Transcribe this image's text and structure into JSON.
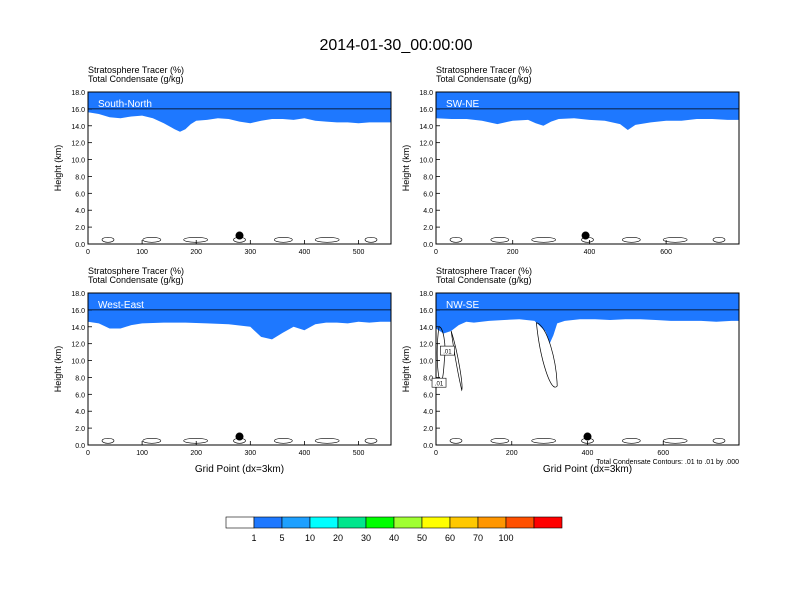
{
  "title": "2014-01-30_00:00:00",
  "colors": {
    "levels": [
      "#ffffff",
      "#1e78ff",
      "#1ea0ff",
      "#00ffff",
      "#00e68c",
      "#00ff00",
      "#a0ff32",
      "#ffff00",
      "#ffc800",
      "#ff9600",
      "#ff5000",
      "#ff0000"
    ]
  },
  "colorbar": {
    "tick_labels": [
      "1",
      "5",
      "10",
      "20",
      "30",
      "40",
      "50",
      "60",
      "70",
      "100"
    ]
  },
  "chart_data": [
    {
      "type": "heatmap",
      "panel_label": "South-North",
      "subtitle_line1": "Stratosphere Tracer   (%)",
      "subtitle_line2": "Total Condensate   (g/kg)",
      "ylabel": "Height (km)",
      "xlabel": "",
      "xlim": [
        0,
        560
      ],
      "ylim": [
        0,
        18
      ],
      "x_ticks": [
        "0",
        "100",
        "200",
        "300",
        "400",
        "500"
      ],
      "y_ticks": [
        "0.0",
        "2.0",
        "4.0",
        "6.0",
        "8.0",
        "10.0",
        "12.0",
        "14.0",
        "16.0",
        "18.0"
      ],
      "tracer_boundary_km": {
        "x": [
          0,
          20,
          40,
          60,
          80,
          100,
          120,
          140,
          160,
          170,
          180,
          190,
          200,
          220,
          240,
          260,
          280,
          300,
          320,
          340,
          360,
          380,
          400,
          420,
          440,
          460,
          480,
          500,
          520,
          540,
          560
        ],
        "y": [
          15.6,
          15.4,
          15.0,
          14.9,
          15.1,
          15.2,
          14.9,
          14.3,
          13.6,
          13.3,
          13.6,
          14.2,
          14.6,
          14.7,
          14.9,
          14.8,
          14.5,
          14.3,
          14.6,
          14.8,
          14.8,
          14.7,
          14.9,
          14.6,
          14.5,
          14.4,
          14.4,
          14.3,
          14.4,
          14.4,
          14.4
        ]
      },
      "marker_point": {
        "x": 280,
        "y": 1.0
      },
      "contour_label": "",
      "contour_note": ""
    },
    {
      "type": "heatmap",
      "panel_label": "SW-NE",
      "subtitle_line1": "Stratosphere Tracer   (%)",
      "subtitle_line2": "Total Condensate   (g/kg)",
      "ylabel": "Height (km)",
      "xlabel": "",
      "xlim": [
        0,
        790
      ],
      "ylim": [
        0,
        18
      ],
      "x_ticks": [
        "0",
        "200",
        "400",
        "600"
      ],
      "y_ticks": [
        "0.0",
        "2.0",
        "4.0",
        "6.0",
        "8.0",
        "10.0",
        "12.0",
        "14.0",
        "16.0",
        "18.0"
      ],
      "tracer_boundary_km": {
        "x": [
          0,
          40,
          80,
          120,
          160,
          200,
          240,
          260,
          280,
          300,
          320,
          360,
          400,
          440,
          480,
          500,
          520,
          560,
          600,
          640,
          680,
          720,
          760,
          790
        ],
        "y": [
          14.9,
          14.8,
          14.8,
          14.6,
          14.2,
          14.6,
          14.7,
          14.3,
          14.0,
          14.5,
          14.8,
          14.9,
          14.7,
          14.6,
          14.2,
          13.5,
          14.1,
          14.4,
          14.6,
          14.6,
          14.8,
          14.8,
          14.7,
          14.7
        ]
      },
      "marker_point": {
        "x": 390,
        "y": 1.0
      },
      "contour_label": "",
      "contour_note": ""
    },
    {
      "type": "heatmap",
      "panel_label": "West-East",
      "subtitle_line1": "Stratosphere Tracer   (%)",
      "subtitle_line2": "Total Condensate   (g/kg)",
      "ylabel": "Height (km)",
      "xlabel": "Grid Point (dx=3km)",
      "xlim": [
        0,
        560
      ],
      "ylim": [
        0,
        18
      ],
      "x_ticks": [
        "0",
        "100",
        "200",
        "300",
        "400",
        "500"
      ],
      "y_ticks": [
        "0.0",
        "2.0",
        "4.0",
        "6.0",
        "8.0",
        "10.0",
        "12.0",
        "14.0",
        "16.0",
        "18.0"
      ],
      "tracer_boundary_km": {
        "x": [
          0,
          20,
          40,
          60,
          80,
          100,
          140,
          180,
          220,
          260,
          300,
          320,
          340,
          360,
          380,
          400,
          420,
          440,
          460,
          480,
          500,
          520,
          540,
          560
        ],
        "y": [
          14.6,
          14.4,
          13.8,
          13.8,
          14.2,
          14.4,
          14.5,
          14.5,
          14.4,
          14.3,
          14.0,
          12.8,
          12.5,
          13.3,
          14.0,
          13.6,
          14.3,
          14.5,
          14.5,
          14.4,
          14.6,
          14.5,
          14.6,
          14.6
        ]
      },
      "marker_point": {
        "x": 280,
        "y": 1.0
      },
      "contour_label": "",
      "contour_note": ""
    },
    {
      "type": "heatmap",
      "panel_label": "NW-SE",
      "subtitle_line1": "Stratosphere Tracer   (%)",
      "subtitle_line2": "Total Condensate   (g/kg)",
      "ylabel": "Height (km)",
      "xlabel": "Grid Point (dx=3km)",
      "xlim": [
        0,
        800
      ],
      "ylim": [
        0,
        18
      ],
      "x_ticks": [
        "0",
        "200",
        "400",
        "600"
      ],
      "y_ticks": [
        "0.0",
        "2.0",
        "4.0",
        "6.0",
        "8.0",
        "10.0",
        "12.0",
        "14.0",
        "16.0",
        "18.0"
      ],
      "tracer_boundary_km": {
        "x": [
          0,
          20,
          40,
          60,
          80,
          100,
          140,
          180,
          220,
          260,
          290,
          300,
          310,
          320,
          340,
          380,
          420,
          460,
          500,
          540,
          580,
          620,
          660,
          700,
          740,
          780,
          800
        ],
        "y": [
          13.8,
          13.2,
          13.5,
          14.2,
          14.6,
          14.5,
          14.7,
          14.8,
          14.9,
          14.7,
          13.4,
          12.0,
          13.0,
          14.4,
          14.7,
          14.9,
          14.9,
          14.8,
          14.9,
          14.9,
          14.8,
          14.7,
          14.7,
          14.7,
          14.6,
          14.7,
          14.7
        ]
      },
      "marker_point": {
        "x": 400,
        "y": 1.0
      },
      "contour_label": ".01",
      "contour_note": "Total Condensate Contours: .01 to .01 by .000"
    }
  ]
}
